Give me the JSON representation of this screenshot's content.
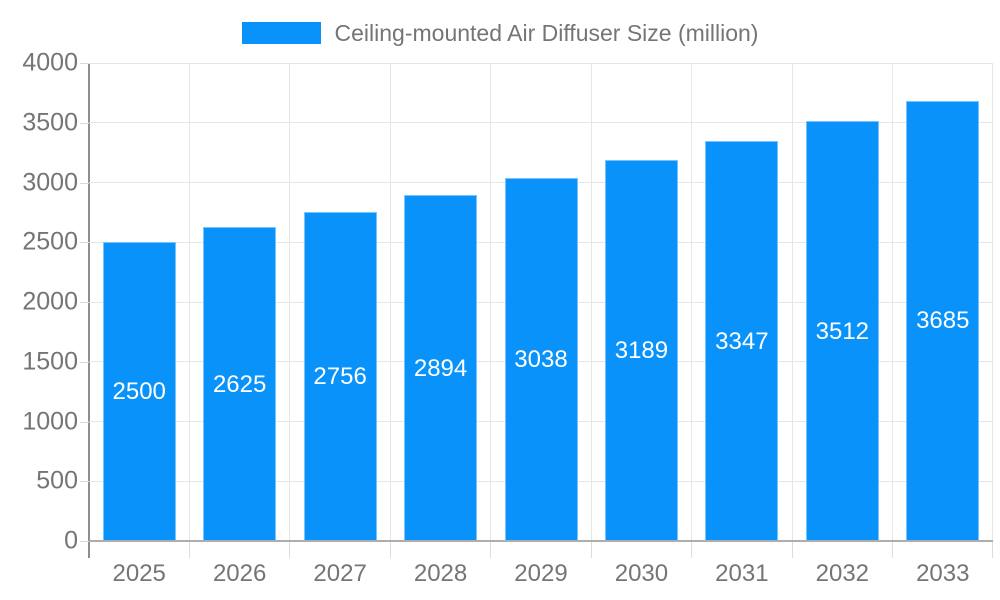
{
  "legend": {
    "label": "Ceiling-mounted Air Diffuser Size (million)"
  },
  "colors": {
    "bar": "#0892fa",
    "bar_stroke": "#78c4fd",
    "grid": "#e6e6e6",
    "y_axis_line": "#8d8d8d",
    "x_axis_line": "#adadad",
    "tick": "#d9d9d9",
    "axis_text": "#757575",
    "bar_label_text": "#ffffff",
    "background": "#ffffff"
  },
  "chart_data": {
    "type": "bar",
    "title": "Ceiling-mounted Air Diffuser Size (million)",
    "categories": [
      "2025",
      "2026",
      "2027",
      "2028",
      "2029",
      "2030",
      "2031",
      "2032",
      "2033"
    ],
    "values": [
      2500,
      2625,
      2756,
      2894,
      3038,
      3189,
      3347,
      3512,
      3685
    ],
    "series_name": "Ceiling-mounted Air Diffuser Size (million)",
    "xlabel": "",
    "ylabel": "",
    "ylim": [
      0,
      4000
    ],
    "ytick_step": 500,
    "ytick_labels": [
      "0",
      "500",
      "1000",
      "1500",
      "2000",
      "2500",
      "3000",
      "3500",
      "4000"
    ],
    "grid": true,
    "legend_position": "top",
    "value_labels": "inside-centered"
  }
}
